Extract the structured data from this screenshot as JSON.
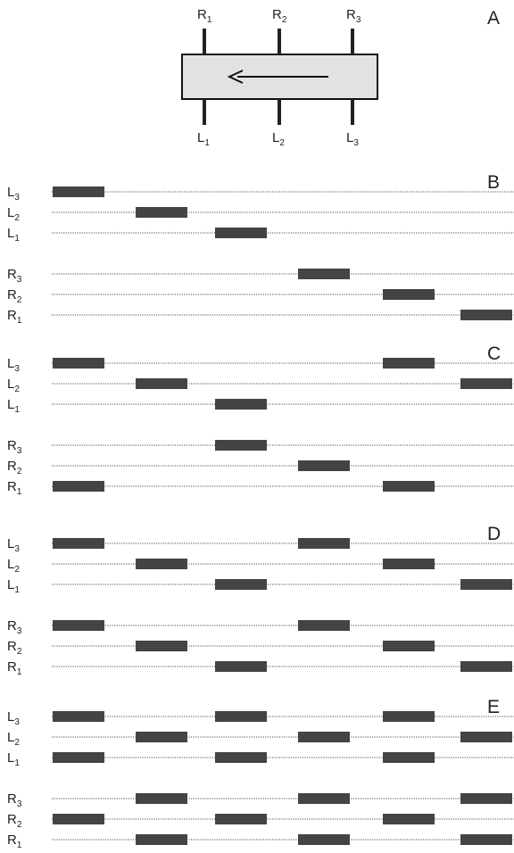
{
  "panel_a": {
    "letter": "A",
    "top_labels": [
      {
        "base": "R",
        "sub": "1"
      },
      {
        "base": "R",
        "sub": "2"
      },
      {
        "base": "R",
        "sub": "3"
      }
    ],
    "bottom_labels": [
      {
        "base": "L",
        "sub": "1"
      },
      {
        "base": "L",
        "sub": "2"
      },
      {
        "base": "L",
        "sub": "3"
      }
    ],
    "box_fill": "#e2e2e2",
    "direction": "right-to-left"
  },
  "colors": {
    "bar": "#444444",
    "track": "#111111"
  },
  "panels": [
    {
      "letter": "B",
      "rows": [
        {
          "base": "L",
          "sub": "3",
          "bars": [
            0
          ]
        },
        {
          "base": "L",
          "sub": "2",
          "bars": [
            1
          ]
        },
        {
          "base": "L",
          "sub": "1",
          "bars": [
            2
          ]
        },
        {
          "base": "R",
          "sub": "3",
          "bars": [
            3
          ]
        },
        {
          "base": "R",
          "sub": "2",
          "bars": [
            4
          ]
        },
        {
          "base": "R",
          "sub": "1",
          "bars": [
            5
          ]
        }
      ]
    },
    {
      "letter": "C",
      "rows": [
        {
          "base": "L",
          "sub": "3",
          "bars": [
            0,
            4
          ]
        },
        {
          "base": "L",
          "sub": "2",
          "bars": [
            1,
            5
          ]
        },
        {
          "base": "L",
          "sub": "1",
          "bars": [
            2
          ]
        },
        {
          "base": "R",
          "sub": "3",
          "bars": [
            2
          ]
        },
        {
          "base": "R",
          "sub": "2",
          "bars": [
            3
          ]
        },
        {
          "base": "R",
          "sub": "1",
          "bars": [
            0,
            4
          ]
        }
      ]
    },
    {
      "letter": "D",
      "rows": [
        {
          "base": "L",
          "sub": "3",
          "bars": [
            0,
            3
          ]
        },
        {
          "base": "L",
          "sub": "2",
          "bars": [
            1,
            4
          ]
        },
        {
          "base": "L",
          "sub": "1",
          "bars": [
            2,
            5
          ]
        },
        {
          "base": "R",
          "sub": "3",
          "bars": [
            0,
            3
          ]
        },
        {
          "base": "R",
          "sub": "2",
          "bars": [
            1,
            4
          ]
        },
        {
          "base": "R",
          "sub": "1",
          "bars": [
            2,
            5
          ]
        }
      ]
    },
    {
      "letter": "E",
      "rows": [
        {
          "base": "L",
          "sub": "3",
          "bars": [
            0,
            2,
            4
          ]
        },
        {
          "base": "L",
          "sub": "2",
          "bars": [
            1,
            3,
            5
          ]
        },
        {
          "base": "L",
          "sub": "1",
          "bars": [
            0,
            2,
            4
          ]
        },
        {
          "base": "R",
          "sub": "3",
          "bars": [
            1,
            3,
            5
          ]
        },
        {
          "base": "R",
          "sub": "2",
          "bars": [
            0,
            2,
            4
          ]
        },
        {
          "base": "R",
          "sub": "1",
          "bars": [
            1,
            3,
            5
          ]
        }
      ]
    }
  ]
}
